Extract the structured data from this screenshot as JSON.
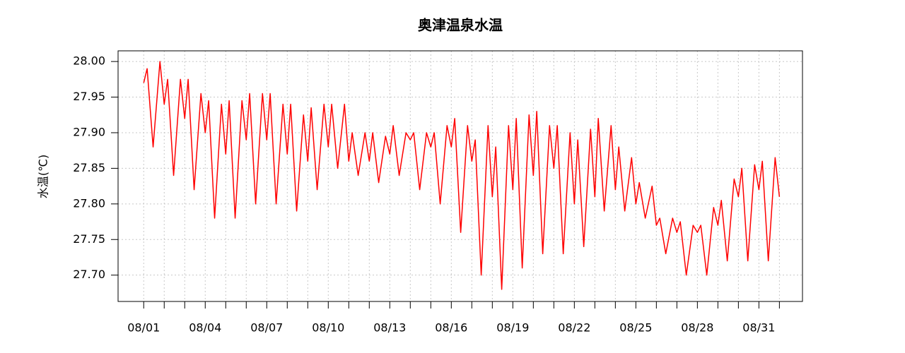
{
  "chart_data": {
    "type": "line",
    "title": "奥津温泉水温",
    "y_label": "水温(℃)",
    "color": "#ff0000",
    "grid": true,
    "xlim": [
      "07/30 18:00",
      "09/02 03:00"
    ],
    "ylim": [
      27.663,
      28.015
    ],
    "yticks": [
      {
        "value": 27.7,
        "label": "27.70"
      },
      {
        "value": 27.75,
        "label": "27.75"
      },
      {
        "value": 27.8,
        "label": "27.80"
      },
      {
        "value": 27.85,
        "label": "27.85"
      },
      {
        "value": 27.9,
        "label": "27.90"
      },
      {
        "value": 27.95,
        "label": "27.95"
      },
      {
        "value": 28.0,
        "label": "28.00"
      }
    ],
    "xticks": [
      "08/01",
      "08/04",
      "08/07",
      "08/10",
      "08/13",
      "08/16",
      "08/19",
      "08/22",
      "08/25",
      "08/28",
      "08/31"
    ],
    "xminor_ticks": [
      "08/02",
      "08/03",
      "08/05",
      "08/06",
      "08/08",
      "08/09",
      "08/11",
      "08/12",
      "08/14",
      "08/15",
      "08/17",
      "08/18",
      "08/20",
      "08/21",
      "08/23",
      "08/24",
      "08/26",
      "08/27",
      "08/29",
      "08/30",
      "09/01"
    ],
    "x": [
      "08/01 00:00",
      "08/01 04:00",
      "08/01 11:00",
      "08/01 19:00",
      "08/02 00:00",
      "08/02 04:00",
      "08/02 11:00",
      "08/02 19:00",
      "08/03 00:00",
      "08/03 04:00",
      "08/03 11:00",
      "08/03 19:00",
      "08/04 00:00",
      "08/04 04:00",
      "08/04 11:00",
      "08/04 19:00",
      "08/05 00:00",
      "08/05 04:00",
      "08/05 11:00",
      "08/05 19:00",
      "08/06 00:00",
      "08/06 04:00",
      "08/06 11:00",
      "08/06 19:00",
      "08/07 00:00",
      "08/07 04:00",
      "08/07 11:00",
      "08/07 19:00",
      "08/08 00:00",
      "08/08 04:00",
      "08/08 11:00",
      "08/08 19:00",
      "08/09 00:00",
      "08/09 04:00",
      "08/09 11:00",
      "08/09 19:00",
      "08/10 00:00",
      "08/10 04:00",
      "08/10 11:00",
      "08/10 19:00",
      "08/11 00:00",
      "08/11 04:00",
      "08/11 11:00",
      "08/11 19:00",
      "08/12 00:00",
      "08/12 04:00",
      "08/12 11:00",
      "08/12 19:00",
      "08/13 00:00",
      "08/13 04:00",
      "08/13 11:00",
      "08/13 19:00",
      "08/14 00:00",
      "08/14 04:00",
      "08/14 11:00",
      "08/14 19:00",
      "08/15 00:00",
      "08/15 04:00",
      "08/15 11:00",
      "08/15 19:00",
      "08/16 00:00",
      "08/16 04:00",
      "08/16 11:00",
      "08/16 19:00",
      "08/17 00:00",
      "08/17 04:00",
      "08/17 11:00",
      "08/17 19:00",
      "08/18 00:00",
      "08/18 04:00",
      "08/18 11:00",
      "08/18 19:00",
      "08/19 00:00",
      "08/19 04:00",
      "08/19 11:00",
      "08/19 19:00",
      "08/20 00:00",
      "08/20 04:00",
      "08/20 11:00",
      "08/20 19:00",
      "08/21 00:00",
      "08/21 04:00",
      "08/21 11:00",
      "08/21 19:00",
      "08/22 00:00",
      "08/22 04:00",
      "08/22 11:00",
      "08/22 19:00",
      "08/23 00:00",
      "08/23 04:00",
      "08/23 11:00",
      "08/23 19:00",
      "08/24 00:00",
      "08/24 04:00",
      "08/24 11:00",
      "08/24 19:00",
      "08/25 00:00",
      "08/25 04:00",
      "08/25 11:00",
      "08/25 19:00",
      "08/26 00:00",
      "08/26 04:00",
      "08/26 11:00",
      "08/26 19:00",
      "08/27 00:00",
      "08/27 04:00",
      "08/27 11:00",
      "08/27 19:00",
      "08/28 00:00",
      "08/28 04:00",
      "08/28 11:00",
      "08/28 19:00",
      "08/29 00:00",
      "08/29 04:00",
      "08/29 11:00",
      "08/29 19:00",
      "08/30 00:00",
      "08/30 04:00",
      "08/30 11:00",
      "08/30 19:00",
      "08/31 00:00",
      "08/31 04:00",
      "08/31 11:00",
      "08/31 19:00",
      "09/01 00:00"
    ],
    "values": [
      27.97,
      27.99,
      27.88,
      28.0,
      27.94,
      27.975,
      27.84,
      27.975,
      27.92,
      27.975,
      27.82,
      27.955,
      27.9,
      27.945,
      27.78,
      27.94,
      27.87,
      27.945,
      27.78,
      27.945,
      27.89,
      27.955,
      27.8,
      27.955,
      27.89,
      27.955,
      27.8,
      27.94,
      27.87,
      27.94,
      27.79,
      27.925,
      27.86,
      27.935,
      27.82,
      27.94,
      27.88,
      27.94,
      27.85,
      27.94,
      27.86,
      27.9,
      27.84,
      27.9,
      27.86,
      27.9,
      27.83,
      27.895,
      27.87,
      27.91,
      27.84,
      27.9,
      27.89,
      27.9,
      27.82,
      27.9,
      27.88,
      27.9,
      27.8,
      27.91,
      27.88,
      27.92,
      27.76,
      27.91,
      27.86,
      27.89,
      27.7,
      27.91,
      27.81,
      27.88,
      27.68,
      27.91,
      27.82,
      27.92,
      27.71,
      27.925,
      27.84,
      27.93,
      27.73,
      27.91,
      27.85,
      27.91,
      27.73,
      27.9,
      27.8,
      27.89,
      27.74,
      27.905,
      27.81,
      27.92,
      27.79,
      27.91,
      27.82,
      27.88,
      27.79,
      27.865,
      27.8,
      27.83,
      27.78,
      27.825,
      27.77,
      27.78,
      27.73,
      27.78,
      27.76,
      27.775,
      27.7,
      27.77,
      27.76,
      27.77,
      27.7,
      27.795,
      27.77,
      27.805,
      27.72,
      27.835,
      27.81,
      27.85,
      27.72,
      27.855,
      27.82,
      27.86,
      27.72,
      27.865,
      27.81
    ]
  }
}
